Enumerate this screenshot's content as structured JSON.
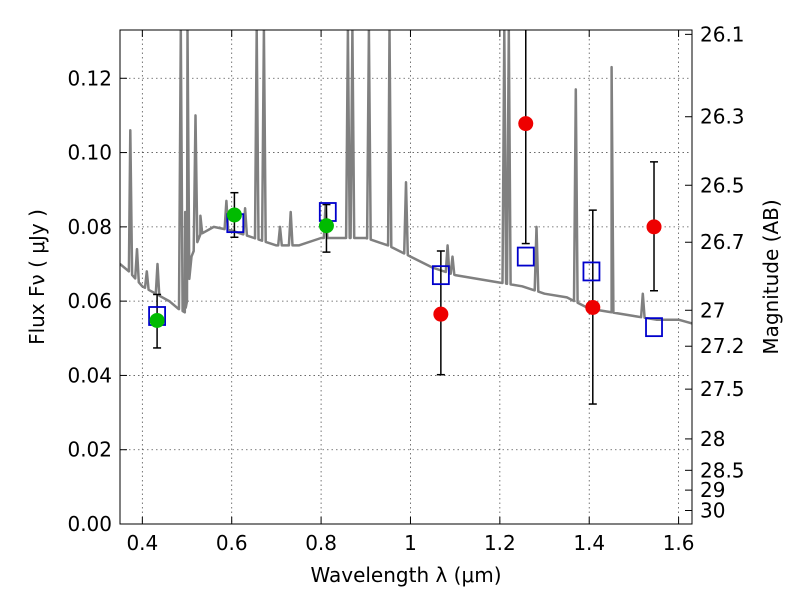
{
  "chart_data": {
    "type": "scatter",
    "title": "",
    "xlabel": "Wavelength  λ (μm)",
    "ylabel": "Flux  Fν  ( μJy )",
    "y2label": "Magnitude (AB)",
    "xlim": [
      0.35,
      1.63
    ],
    "ylim": [
      0.0,
      0.133
    ],
    "grid": true,
    "x_ticks": [
      0.4,
      0.6,
      0.8,
      1.0,
      1.2,
      1.4,
      1.6
    ],
    "x_tick_labels": [
      "0.4",
      "0.6",
      "0.8",
      "1",
      "1.2",
      "1.4",
      "1.6"
    ],
    "y_ticks": [
      0.0,
      0.02,
      0.04,
      0.06,
      0.08,
      0.1,
      0.12
    ],
    "y_tick_labels": [
      "0.00",
      "0.02",
      "0.04",
      "0.06",
      "0.08",
      "0.10",
      "0.12"
    ],
    "y2_ticks": [
      {
        "mag": 26.1,
        "label": "26.1"
      },
      {
        "mag": 26.3,
        "label": "26.3"
      },
      {
        "mag": 26.5,
        "label": "26.5"
      },
      {
        "mag": 26.7,
        "label": "26.7"
      },
      {
        "mag": 27.0,
        "label": "27"
      },
      {
        "mag": 27.2,
        "label": "27.2"
      },
      {
        "mag": 27.5,
        "label": "27.5"
      },
      {
        "mag": 28.0,
        "label": "28"
      },
      {
        "mag": 28.5,
        "label": "28.5"
      },
      {
        "mag": 29.0,
        "label": "29"
      },
      {
        "mag": 30.0,
        "label": "30"
      }
    ],
    "series": [
      {
        "kind": "spectrum-line",
        "color": "#808080",
        "continuum": [
          [
            0.35,
            0.07
          ],
          [
            0.37,
            0.068
          ],
          [
            0.4,
            0.064
          ],
          [
            0.43,
            0.062
          ],
          [
            0.46,
            0.06
          ],
          [
            0.48,
            0.058
          ],
          [
            0.495,
            0.057
          ],
          [
            0.5,
            0.06
          ],
          [
            0.51,
            0.072
          ],
          [
            0.53,
            0.078
          ],
          [
            0.56,
            0.08
          ],
          [
            0.6,
            0.079
          ],
          [
            0.65,
            0.077
          ],
          [
            0.7,
            0.075
          ],
          [
            0.75,
            0.075
          ],
          [
            0.8,
            0.077
          ],
          [
            0.85,
            0.077
          ],
          [
            0.9,
            0.077
          ],
          [
            0.95,
            0.075
          ],
          [
            1.0,
            0.072
          ],
          [
            1.05,
            0.069
          ],
          [
            1.1,
            0.067
          ],
          [
            1.15,
            0.066
          ],
          [
            1.2,
            0.065
          ],
          [
            1.25,
            0.064
          ],
          [
            1.3,
            0.062
          ],
          [
            1.35,
            0.061
          ],
          [
            1.4,
            0.058
          ],
          [
            1.45,
            0.057
          ],
          [
            1.5,
            0.056
          ],
          [
            1.55,
            0.055
          ],
          [
            1.6,
            0.055
          ],
          [
            1.63,
            0.054
          ]
        ],
        "lines": [
          {
            "x": 0.373,
            "y": 0.106
          },
          {
            "x": 0.388,
            "y": 0.074
          },
          {
            "x": 0.41,
            "y": 0.068
          },
          {
            "x": 0.434,
            "y": 0.07
          },
          {
            "x": 0.486,
            "y": 0.133
          },
          {
            "x": 0.496,
            "y": 0.084
          },
          {
            "x": 0.501,
            "y": 0.133
          },
          {
            "x": 0.519,
            "y": 0.11
          },
          {
            "x": 0.53,
            "y": 0.083
          },
          {
            "x": 0.588,
            "y": 0.087
          },
          {
            "x": 0.63,
            "y": 0.085
          },
          {
            "x": 0.656,
            "y": 0.133
          },
          {
            "x": 0.672,
            "y": 0.133
          },
          {
            "x": 0.708,
            "y": 0.08
          },
          {
            "x": 0.732,
            "y": 0.084
          },
          {
            "x": 0.81,
            "y": 0.086
          },
          {
            "x": 0.86,
            "y": 0.133
          },
          {
            "x": 0.87,
            "y": 0.133
          },
          {
            "x": 0.907,
            "y": 0.133
          },
          {
            "x": 0.953,
            "y": 0.133
          },
          {
            "x": 0.99,
            "y": 0.092
          },
          {
            "x": 1.083,
            "y": 0.075
          },
          {
            "x": 1.094,
            "y": 0.072
          },
          {
            "x": 1.21,
            "y": 0.133
          },
          {
            "x": 1.22,
            "y": 0.133
          },
          {
            "x": 1.282,
            "y": 0.08
          },
          {
            "x": 1.37,
            "y": 0.117
          },
          {
            "x": 1.45,
            "y": 0.123
          },
          {
            "x": 1.52,
            "y": 0.062
          }
        ]
      },
      {
        "kind": "model-points",
        "marker": "square",
        "color": "#0000cc",
        "points": [
          {
            "x": 0.433,
            "y": 0.056
          },
          {
            "x": 0.608,
            "y": 0.081
          },
          {
            "x": 0.815,
            "y": 0.084
          },
          {
            "x": 1.068,
            "y": 0.067
          },
          {
            "x": 1.258,
            "y": 0.072
          },
          {
            "x": 1.405,
            "y": 0.068
          },
          {
            "x": 1.545,
            "y": 0.053
          }
        ]
      },
      {
        "kind": "observed-points",
        "marker": "circle",
        "color": "#00bb00",
        "points": [
          {
            "x": 0.433,
            "y": 0.0548,
            "err_low": 0.0474,
            "err_high": 0.0618
          },
          {
            "x": 0.606,
            "y": 0.0832,
            "err_low": 0.0772,
            "err_high": 0.0892
          },
          {
            "x": 0.812,
            "y": 0.0803,
            "err_low": 0.0732,
            "err_high": 0.086
          }
        ]
      },
      {
        "kind": "observed-points",
        "marker": "circle",
        "color": "#ee0000",
        "points": [
          {
            "x": 1.068,
            "y": 0.0565,
            "err_low": 0.0402,
            "err_high": 0.0735
          },
          {
            "x": 1.258,
            "y": 0.1078,
            "err_low": 0.0755,
            "err_high": 0.134
          },
          {
            "x": 1.408,
            "y": 0.0583,
            "err_low": 0.0323,
            "err_high": 0.0845
          },
          {
            "x": 1.545,
            "y": 0.08,
            "err_low": 0.0628,
            "err_high": 0.0975
          }
        ]
      }
    ]
  }
}
